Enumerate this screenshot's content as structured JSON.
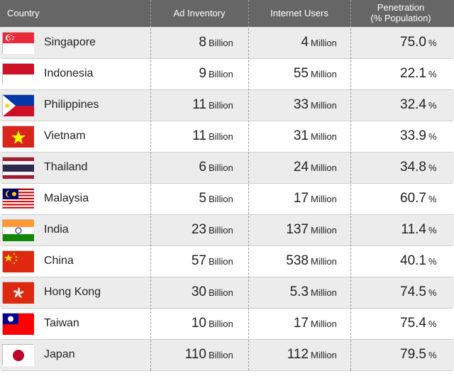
{
  "columns": {
    "country": "Country",
    "ad": "Ad Inventory",
    "users": "Internet Users",
    "penetration_line1": "Penetration",
    "penetration_line2": "(% Population)"
  },
  "units": {
    "billion": "Billion",
    "million": "Million",
    "percent": "%"
  },
  "colors": {
    "header_bg": "#666666",
    "header_text": "#ffffff",
    "row_odd_bg": "#ececec",
    "row_even_bg": "#ffffff",
    "text": "#222222",
    "separator": "#9a9a9a",
    "row_border": "#cfcfcf",
    "flag_border": "#bbbbbb"
  },
  "rows": [
    {
      "country": "Singapore",
      "ad": "8",
      "users": "4",
      "penetration": "75.0"
    },
    {
      "country": "Indonesia",
      "ad": "9",
      "users": "55",
      "penetration": "22.1"
    },
    {
      "country": "Philippines",
      "ad": "11",
      "users": "33",
      "penetration": "32.4"
    },
    {
      "country": "Vietnam",
      "ad": "11",
      "users": "31",
      "penetration": "33.9"
    },
    {
      "country": "Thailand",
      "ad": "6",
      "users": "24",
      "penetration": "34.8"
    },
    {
      "country": "Malaysia",
      "ad": "5",
      "users": "17",
      "penetration": "60.7"
    },
    {
      "country": "India",
      "ad": "23",
      "users": "137",
      "penetration": "11.4"
    },
    {
      "country": "China",
      "ad": "57",
      "users": "538",
      "penetration": "40.1"
    },
    {
      "country": "Hong Kong",
      "ad": "30",
      "users": "5.3",
      "penetration": "74.5"
    },
    {
      "country": "Taiwan",
      "ad": "10",
      "users": "17",
      "penetration": "75.4"
    },
    {
      "country": "Japan",
      "ad": "110",
      "users": "112",
      "penetration": "79.5"
    }
  ],
  "flags": {
    "Singapore": "singapore",
    "Indonesia": "indonesia",
    "Philippines": "philippines",
    "Vietnam": "vietnam",
    "Thailand": "thailand",
    "Malaysia": "malaysia",
    "India": "india",
    "China": "china",
    "Hong Kong": "hongkong",
    "Taiwan": "taiwan",
    "Japan": "japan"
  }
}
